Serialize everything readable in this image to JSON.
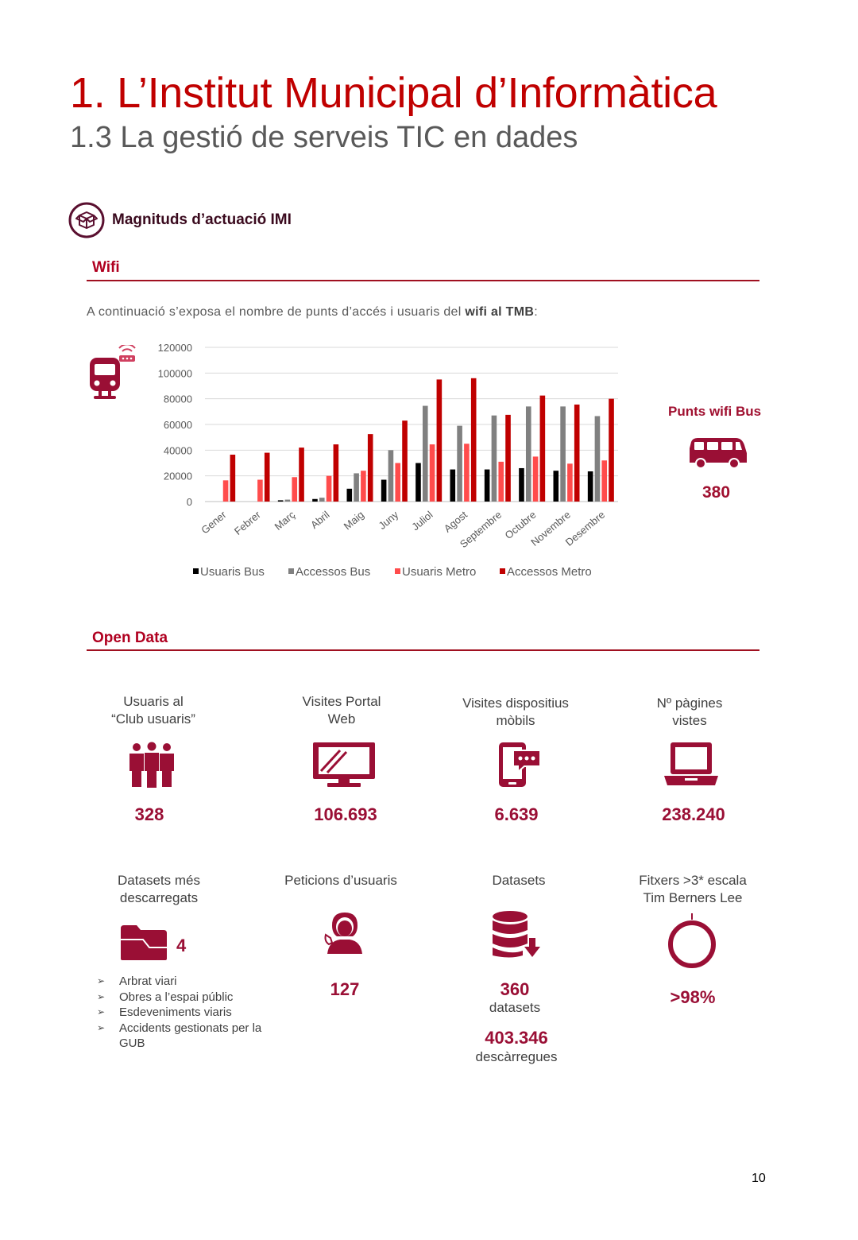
{
  "header": {
    "title": "1. L’Institut Municipal d’Informàtica",
    "subtitle": "1.3 La gestió de serveis TIC en dades"
  },
  "section_main": {
    "label": "Magnituds d’actuació IMI"
  },
  "wifi": {
    "heading": "Wifi",
    "intro_prefix": "A continuació s’exposa el nombre de punts d’accés i usuaris del ",
    "intro_bold": "wifi al TMB",
    "intro_suffix": ":",
    "punts_title": "Punts wifi Bus",
    "punts_value": "380"
  },
  "chart_data": {
    "type": "bar",
    "categories": [
      "Gener",
      "Febrer",
      "Març",
      "Abril",
      "Maig",
      "Juny",
      "Juliol",
      "Agost",
      "Septembre",
      "Octubre",
      "Novembre",
      "Desembre"
    ],
    "ylim": [
      0,
      120000
    ],
    "yticks": [
      0,
      20000,
      40000,
      60000,
      80000,
      100000,
      120000
    ],
    "ytick_labels": [
      "0",
      "20000",
      "40000",
      "60000",
      "80000",
      "100000",
      "120000"
    ],
    "legend_position": "bottom",
    "series": [
      {
        "name": "Usuaris Bus",
        "color": "#000000",
        "values": [
          0,
          0,
          1000,
          2000,
          10000,
          17000,
          30000,
          25000,
          25000,
          26000,
          24000,
          23500
        ]
      },
      {
        "name": "Accessos Bus",
        "color": "#808080",
        "values": [
          0,
          0,
          1500,
          3000,
          22000,
          40000,
          74500,
          59000,
          67000,
          74000,
          74000,
          66500
        ]
      },
      {
        "name": "Usuaris Metro",
        "color": "#ff4c4c",
        "values": [
          16500,
          17000,
          19000,
          20000,
          24000,
          30000,
          44500,
          45000,
          31000,
          35000,
          29500,
          32000
        ]
      },
      {
        "name": "Accessos Metro",
        "color": "#c00000",
        "values": [
          36500,
          38000,
          42000,
          44500,
          52500,
          63000,
          95000,
          96000,
          67500,
          82500,
          75500,
          80000
        ]
      }
    ]
  },
  "open_data": {
    "heading": "Open Data",
    "row1": [
      {
        "label_line1": "Usuaris al",
        "label_line2": "“Club usuaris”",
        "value": "328",
        "icon": "users-icon"
      },
      {
        "label_line1": "Visites Portal",
        "label_line2": "Web",
        "value": "106.693",
        "icon": "monitor-icon"
      },
      {
        "label_line1": "Visites dispositius",
        "label_line2": "mòbils",
        "value": "6.639",
        "icon": "mobile-icon"
      },
      {
        "label_line1": "Nº pàgines",
        "label_line2": "vistes",
        "value": "238.240",
        "icon": "laptop-icon"
      }
    ],
    "datasets_desc": {
      "label_line1": "Datasets més",
      "label_line2": "descarregats",
      "value": "4",
      "icon": "folder-icon",
      "items": [
        "Arbrat viari",
        "Obres a l’espai públic",
        "Esdeveniments viaris",
        "Accidents gestionats per la GUB"
      ]
    },
    "peticions": {
      "label": "Peticions d’usuaris",
      "value": "127",
      "icon": "support-icon"
    },
    "datasets": {
      "label": "Datasets",
      "value": "360",
      "sub": "datasets",
      "value2": "403.346",
      "sub2": "descàrregues",
      "icon": "database-download-icon"
    },
    "fitxers": {
      "label_line1": "Fitxers >3* escala",
      "label_line2": "Tim Berners Lee",
      "value": ">98%",
      "percent": 98,
      "icon": "donut-icon"
    }
  },
  "page_number": "10"
}
